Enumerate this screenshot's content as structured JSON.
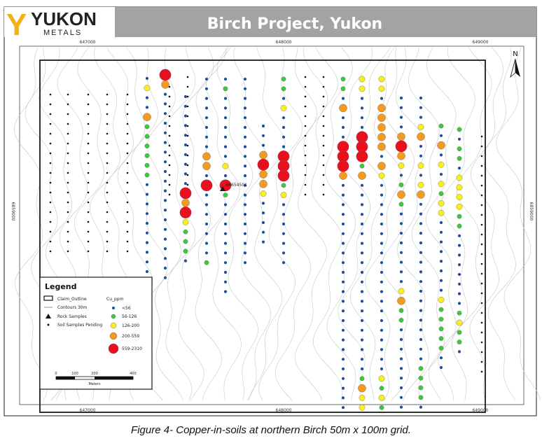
{
  "header": {
    "logo_letter": "Y",
    "logo_word": "YUKON",
    "logo_sub": "METALS",
    "title": "Birch Project, Yukon"
  },
  "grid_labels": {
    "x_top": [
      "647000",
      "648000",
      "649000"
    ],
    "x_bottom": [
      "647000",
      "648000",
      "649000"
    ],
    "y_side": "6859000",
    "north": "N"
  },
  "rock_sample_label": "BK654501",
  "legend": {
    "title": "Legend",
    "items": [
      {
        "label": "Claim_Outline",
        "symbol": "rect"
      },
      {
        "label": "Contours 30m",
        "symbol": "line"
      },
      {
        "label": "Rock Samples",
        "symbol": "triangle"
      },
      {
        "label": "Soil Samples Pending",
        "symbol": "smalldot"
      }
    ],
    "cu_title": "Cu_ppm",
    "classes": [
      {
        "label": "<56",
        "color": "#1f4e9c"
      },
      {
        "label": "56-126",
        "color": "#3ec83e"
      },
      {
        "label": "126-200",
        "color": "#f7f01e"
      },
      {
        "label": "200-559",
        "color": "#f39a21"
      },
      {
        "label": "559-2310",
        "color": "#e8101e"
      }
    ],
    "scale_ticks": [
      "0",
      "100",
      "200",
      "400"
    ],
    "scale_unit": "Meters"
  },
  "colors": {
    "blue": "#1f4e9c",
    "green": "#3ec83e",
    "yellow": "#f7f01e",
    "orange": "#f39a21",
    "red": "#e8101e",
    "header_bg": "#a3a3a3"
  },
  "caption": "Figure 4- Copper-in-soils at northern Birch 50m x 100m grid."
}
